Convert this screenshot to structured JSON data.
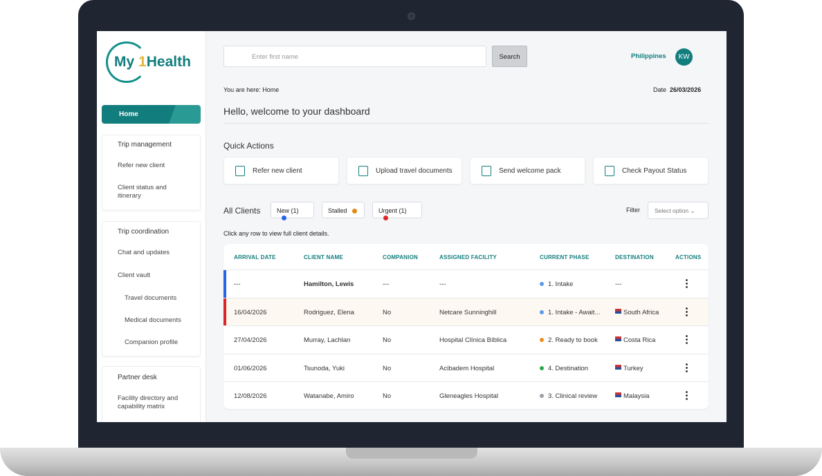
{
  "logo": {
    "my": "My",
    "one": "1",
    "health": "Health"
  },
  "sidebar": {
    "home": "Home",
    "sections": [
      {
        "title": "Trip management",
        "items": [
          "Refer new client",
          "Client status and itinerary"
        ]
      },
      {
        "title": "Trip coordination",
        "items": [
          "Chat and updates",
          "Client vault",
          "Travel documents",
          "Medical documents",
          "Companion profile"
        ]
      },
      {
        "title": "Partner desk",
        "items": [
          "Facility directory and capability matrix"
        ]
      }
    ]
  },
  "header": {
    "search_placeholder": "Enter first name",
    "search_button": "Search",
    "location": "Philippines",
    "avatar": "KW"
  },
  "breadcrumb": "You are here: Home",
  "date": {
    "label": "Date",
    "value": "26/03/2026"
  },
  "greeting": "Hello, welcome to your dashboard",
  "quick_actions": {
    "title": "Quick Actions",
    "items": [
      "Refer new client",
      "Upload travel documents",
      "Send welcome pack",
      "Check Payout Status"
    ]
  },
  "clients": {
    "title": "All Clients",
    "chips": [
      "New (1)",
      "Stalled",
      "Urgent (1)"
    ],
    "filter_label": "Filter",
    "filter_select": "Select option",
    "hint": "Click any row to view full client details.",
    "table": {
      "headers": [
        "ARRIVAL DATE",
        "CLIENT NAME",
        "COMPANION",
        "ASSIGNED FACILITY",
        "CURRENT PHASE",
        "DESTINATION",
        "ACTIONS"
      ],
      "rows": [
        [
          "---",
          "Hamilton, Lewis",
          "---",
          "---",
          "1. Intake",
          "---"
        ],
        [
          "16/04/2026",
          "Rodriguez, Elena",
          "No",
          "Netcare Sunninghill",
          "1. Intake - Await...",
          "South Africa"
        ],
        [
          "27/04/2026",
          "Murray, Lachlan",
          "No",
          "Hospital Clínica Bíblica",
          "2. Ready to book",
          "Costa Rica"
        ],
        [
          "01/06/2026",
          "Tsunoda, Yuki",
          "No",
          "Acibadem Hospital",
          "4. Destination",
          "Turkey"
        ],
        [
          "12/08/2026",
          "Watanabe, Amiro",
          "No",
          "Gleneagles Hospital",
          "3. Clinical review",
          "Malaysia"
        ]
      ]
    }
  }
}
